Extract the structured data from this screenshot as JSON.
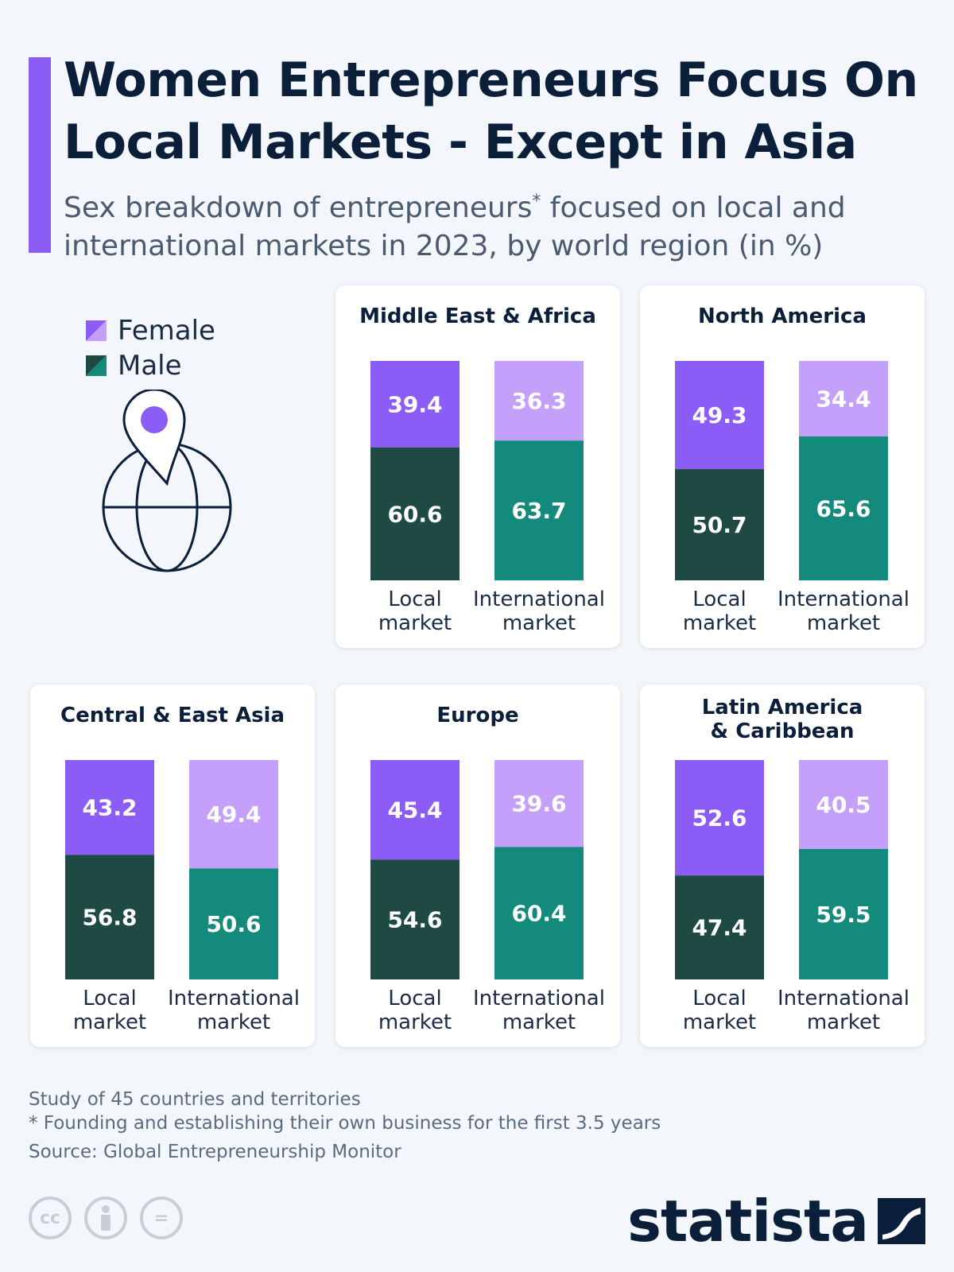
{
  "header": {
    "title": "Women Entrepreneurs Focus On Local Markets - Except in Asia",
    "subtitle_part1": "Sex breakdown of entrepreneurs",
    "subtitle_sup": "*",
    "subtitle_part2": " focused on local and international markets in 2023, by world region (in %)"
  },
  "legend": {
    "female": "Female",
    "male": "Male"
  },
  "colors": {
    "accent": "#8b5cf6",
    "female_local": "#8b5cf6",
    "female_international": "#c4a0fb",
    "male_local": "#1e4a43",
    "male_international": "#148a7c"
  },
  "chart_data": {
    "type": "bar",
    "stacked": true,
    "categories": [
      "Local market",
      "International market"
    ],
    "series_names": [
      "Female",
      "Male"
    ],
    "unit": "%",
    "panels": [
      {
        "region": "Middle East & Africa",
        "female": [
          39.4,
          36.3
        ],
        "male": [
          60.6,
          63.7
        ]
      },
      {
        "region": "North America",
        "female": [
          49.3,
          34.4
        ],
        "male": [
          50.7,
          65.6
        ]
      },
      {
        "region": "Central & East Asia",
        "female": [
          43.2,
          49.4
        ],
        "male": [
          56.8,
          50.6
        ]
      },
      {
        "region": "Europe",
        "female": [
          45.4,
          39.6
        ],
        "male": [
          54.6,
          60.4
        ]
      },
      {
        "region": "Latin America & Caribbean",
        "female": [
          52.6,
          40.5
        ],
        "male": [
          47.4,
          59.5
        ]
      }
    ]
  },
  "axis_labels": {
    "local": [
      "Local",
      "market"
    ],
    "international": [
      "International",
      "market"
    ]
  },
  "footer": {
    "note1": "Study of 45 countries and territories",
    "note2": "* Founding and establishing their own business for the first 3.5 years",
    "source": "Source: Global Entrepreneurship Monitor",
    "brand": "statista",
    "license_cc": "cc",
    "license_eq": "="
  }
}
